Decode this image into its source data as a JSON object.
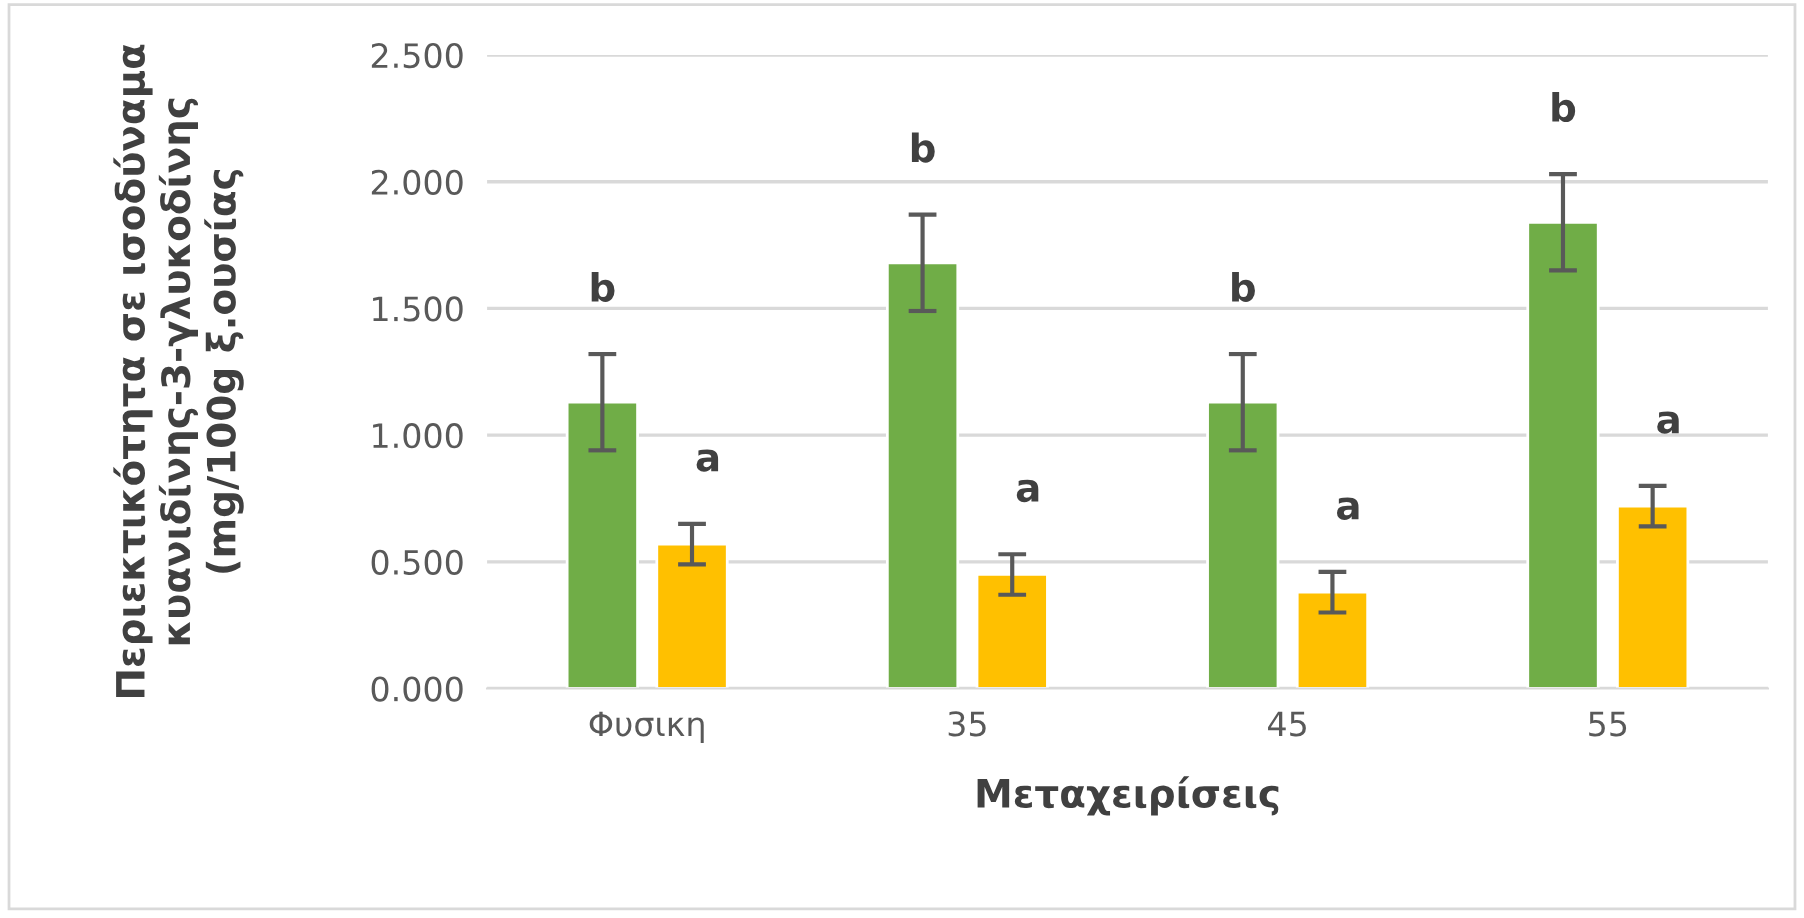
{
  "chart_data": {
    "type": "bar",
    "xlabel": "Μεταχειρίσεις",
    "ylabel": "Περιεκτικότητα σε ισοδύναμα κυανιδίνης-3-γλυκοδίνης (mg/100g ξ.ουσίας",
    "categories": [
      "Φυσικη",
      "35",
      "45",
      "55"
    ],
    "series": [
      {
        "color": "#70ad47",
        "values": [
          1.13,
          1.68,
          1.13,
          1.84
        ],
        "errors": [
          0.19,
          0.19,
          0.19,
          0.19
        ]
      },
      {
        "color": "#ffc000",
        "values": [
          0.57,
          0.45,
          0.38,
          0.72
        ],
        "errors": [
          0.08,
          0.08,
          0.08,
          0.08
        ]
      }
    ],
    "ylim": [
      0,
      2.5
    ],
    "yticks": [
      {
        "value": 0,
        "label": "0.000"
      },
      {
        "value": 0.5,
        "label": "0.500"
      },
      {
        "value": 1,
        "label": "1.000"
      },
      {
        "value": 1.5,
        "label": "1.500"
      },
      {
        "value": 2,
        "label": "2.000"
      },
      {
        "value": 2.5,
        "label": "2.500"
      }
    ],
    "grid": "y",
    "legend": false,
    "annotations": [
      "b",
      "a",
      "b",
      "a",
      "b",
      "a",
      "b",
      "a"
    ]
  }
}
